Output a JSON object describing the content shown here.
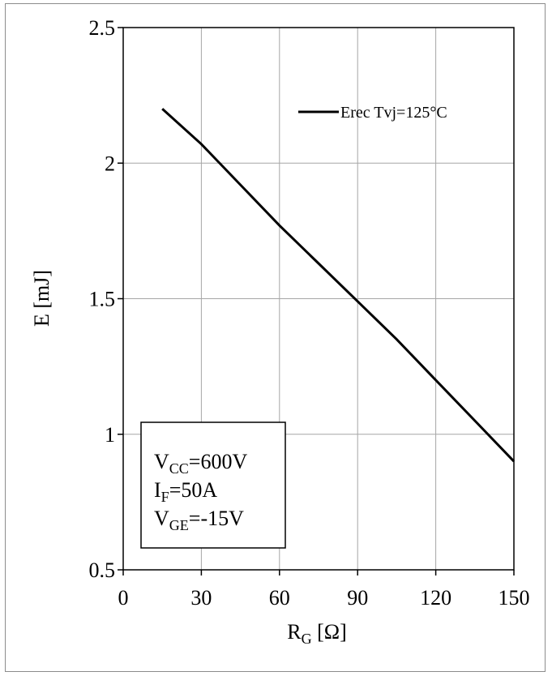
{
  "chart_data": {
    "type": "line",
    "xlabel_main": "R",
    "xlabel_sub": "G",
    "xlabel_unit": " [Ω]",
    "ylabel": "E [mJ]",
    "xlim": [
      0,
      150
    ],
    "ylim": [
      0.5,
      2.5
    ],
    "xticks": [
      0,
      30,
      60,
      90,
      120,
      150
    ],
    "xtick_labels": [
      "0",
      "30",
      "60",
      "90",
      "120",
      "150"
    ],
    "yticks": [
      0.5,
      1,
      1.5,
      2,
      2.5
    ],
    "ytick_labels": [
      "0.5",
      "1",
      "1.5",
      "2",
      "2.5"
    ],
    "grid": true,
    "legend_position": "top-right",
    "series": [
      {
        "name": "Erec Tvj=125°C",
        "color": "#000000",
        "x": [
          15,
          30,
          45,
          60,
          75,
          90,
          105,
          120,
          135,
          150
        ],
        "y": [
          2.2,
          2.07,
          1.92,
          1.77,
          1.63,
          1.49,
          1.35,
          1.2,
          1.05,
          0.9
        ]
      }
    ],
    "conditions": [
      {
        "main": "V",
        "sub": "CC",
        "rest": "=600V"
      },
      {
        "main": "I",
        "sub": "F",
        "rest": "=50A"
      },
      {
        "main": "V",
        "sub": "GE",
        "rest": "=-15V"
      }
    ]
  }
}
